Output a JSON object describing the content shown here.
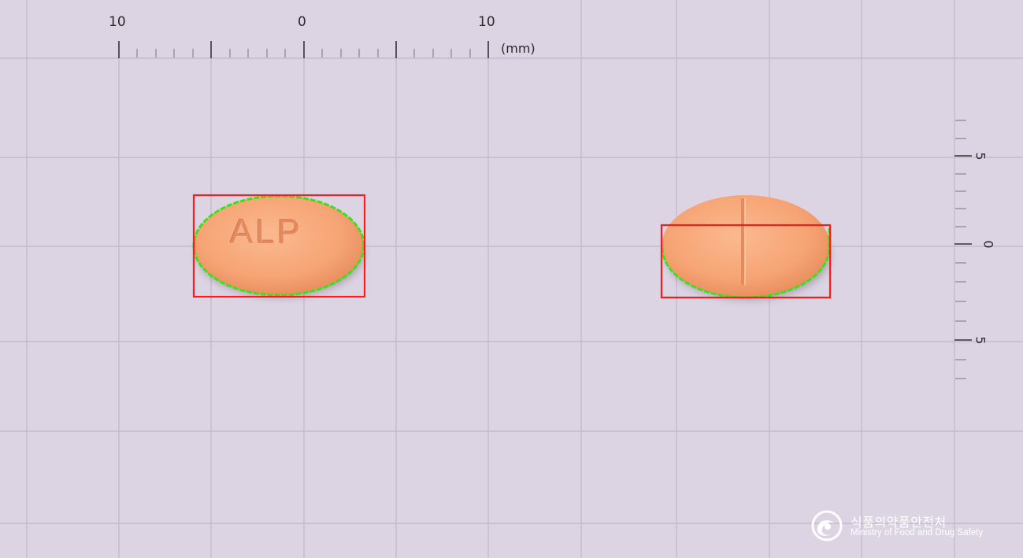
{
  "ruler_top": {
    "label_left": "10",
    "label_center": "0",
    "label_right": "10",
    "unit": "(mm)"
  },
  "ruler_right": {
    "label_top": "5",
    "label_center": "0",
    "label_bottom": "5"
  },
  "tablets": {
    "front": {
      "imprint": "ALP",
      "color": "#f7a978"
    },
    "back": {
      "imprint": "",
      "score_line": true,
      "color": "#f7a978"
    }
  },
  "overlay_colors": {
    "bounding_box": "#ff1a1a",
    "contour": "#39e21b"
  },
  "watermark": {
    "name_ko": "식품의약품안전처",
    "name_en": "Ministry of Food and Drug Safety",
    "icon": "mfds-logo-icon"
  }
}
